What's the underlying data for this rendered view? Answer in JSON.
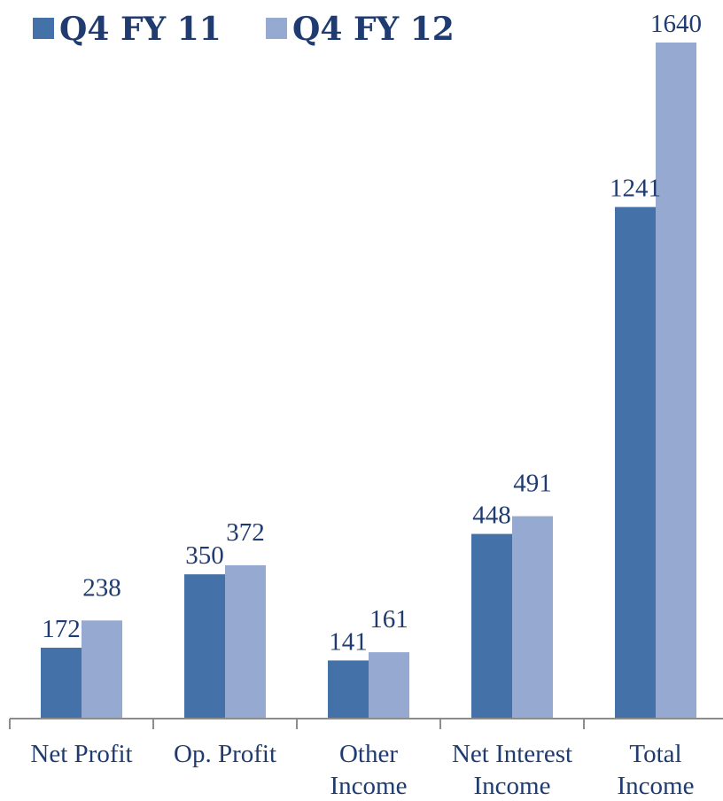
{
  "chart_data": {
    "type": "bar",
    "categories": [
      [
        "Net Profit"
      ],
      [
        "Op. Profit"
      ],
      [
        "Other",
        "Income"
      ],
      [
        "Net Interest",
        "Income"
      ],
      [
        "Total",
        "Income"
      ]
    ],
    "series": [
      {
        "name": "Q4 FY 11",
        "values": [
          172,
          350,
          141,
          448,
          1241
        ],
        "color": "#4472a8"
      },
      {
        "name": "Q4 FY 12",
        "values": [
          238,
          372,
          161,
          491,
          1640
        ],
        "color": "#95a9d1"
      }
    ],
    "ylim": [
      0,
      1640
    ],
    "grid": false,
    "legend": "top-left",
    "xlabel": "",
    "ylabel": ""
  }
}
